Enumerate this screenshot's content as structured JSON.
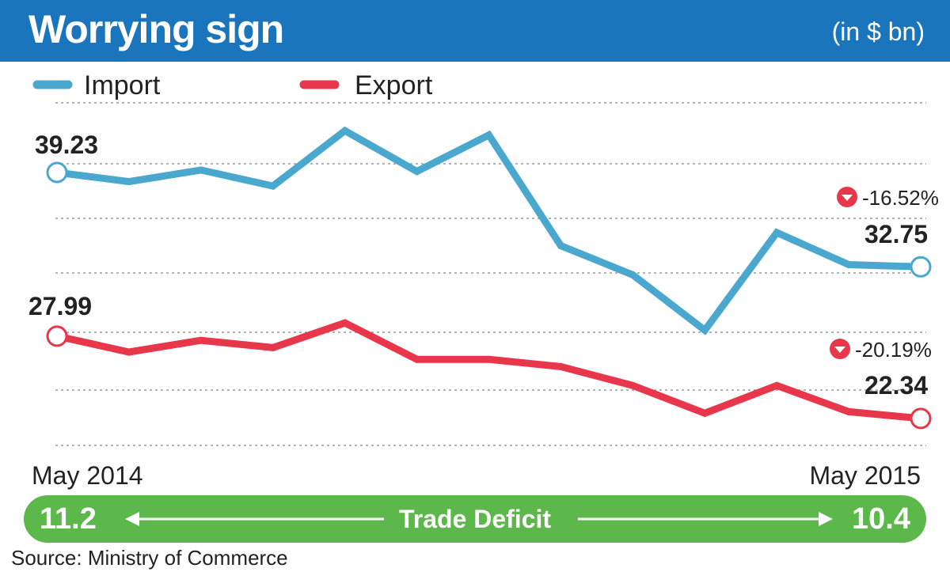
{
  "header": {
    "title": "Worrying sign",
    "unit": "(in $ bn)"
  },
  "colors": {
    "header_bg": "#1b75bc",
    "import": "#4aa8cf",
    "export": "#e8364a",
    "deficit_bar": "#5cb84a"
  },
  "chart_data": {
    "type": "line",
    "title": "Worrying sign",
    "xlabel": "",
    "ylabel": "",
    "unit": "(in $ bn)",
    "x_start_label": "May 2014",
    "x_end_label": "May 2015",
    "ylim": [
      20,
      40
    ],
    "grid": true,
    "legend": "top-left",
    "series": [
      {
        "name": "Import",
        "values": [
          39.23,
          38.6,
          39.4,
          38.3,
          42.1,
          39.3,
          41.8,
          34.2,
          32.2,
          28.4,
          35.1,
          32.9,
          32.75
        ],
        "start_label": "39.23",
        "end_label": "32.75",
        "change_label": "-16.52%"
      },
      {
        "name": "Export",
        "values": [
          27.99,
          26.9,
          27.7,
          27.2,
          28.9,
          26.4,
          26.4,
          25.9,
          24.6,
          22.7,
          24.6,
          22.8,
          22.34
        ],
        "start_label": "27.99",
        "end_label": "22.34",
        "change_label": "-20.19%"
      }
    ]
  },
  "deficit": {
    "label": "Trade Deficit",
    "start": "11.2",
    "end": "10.4"
  },
  "source": "Source: Ministry of Commerce"
}
